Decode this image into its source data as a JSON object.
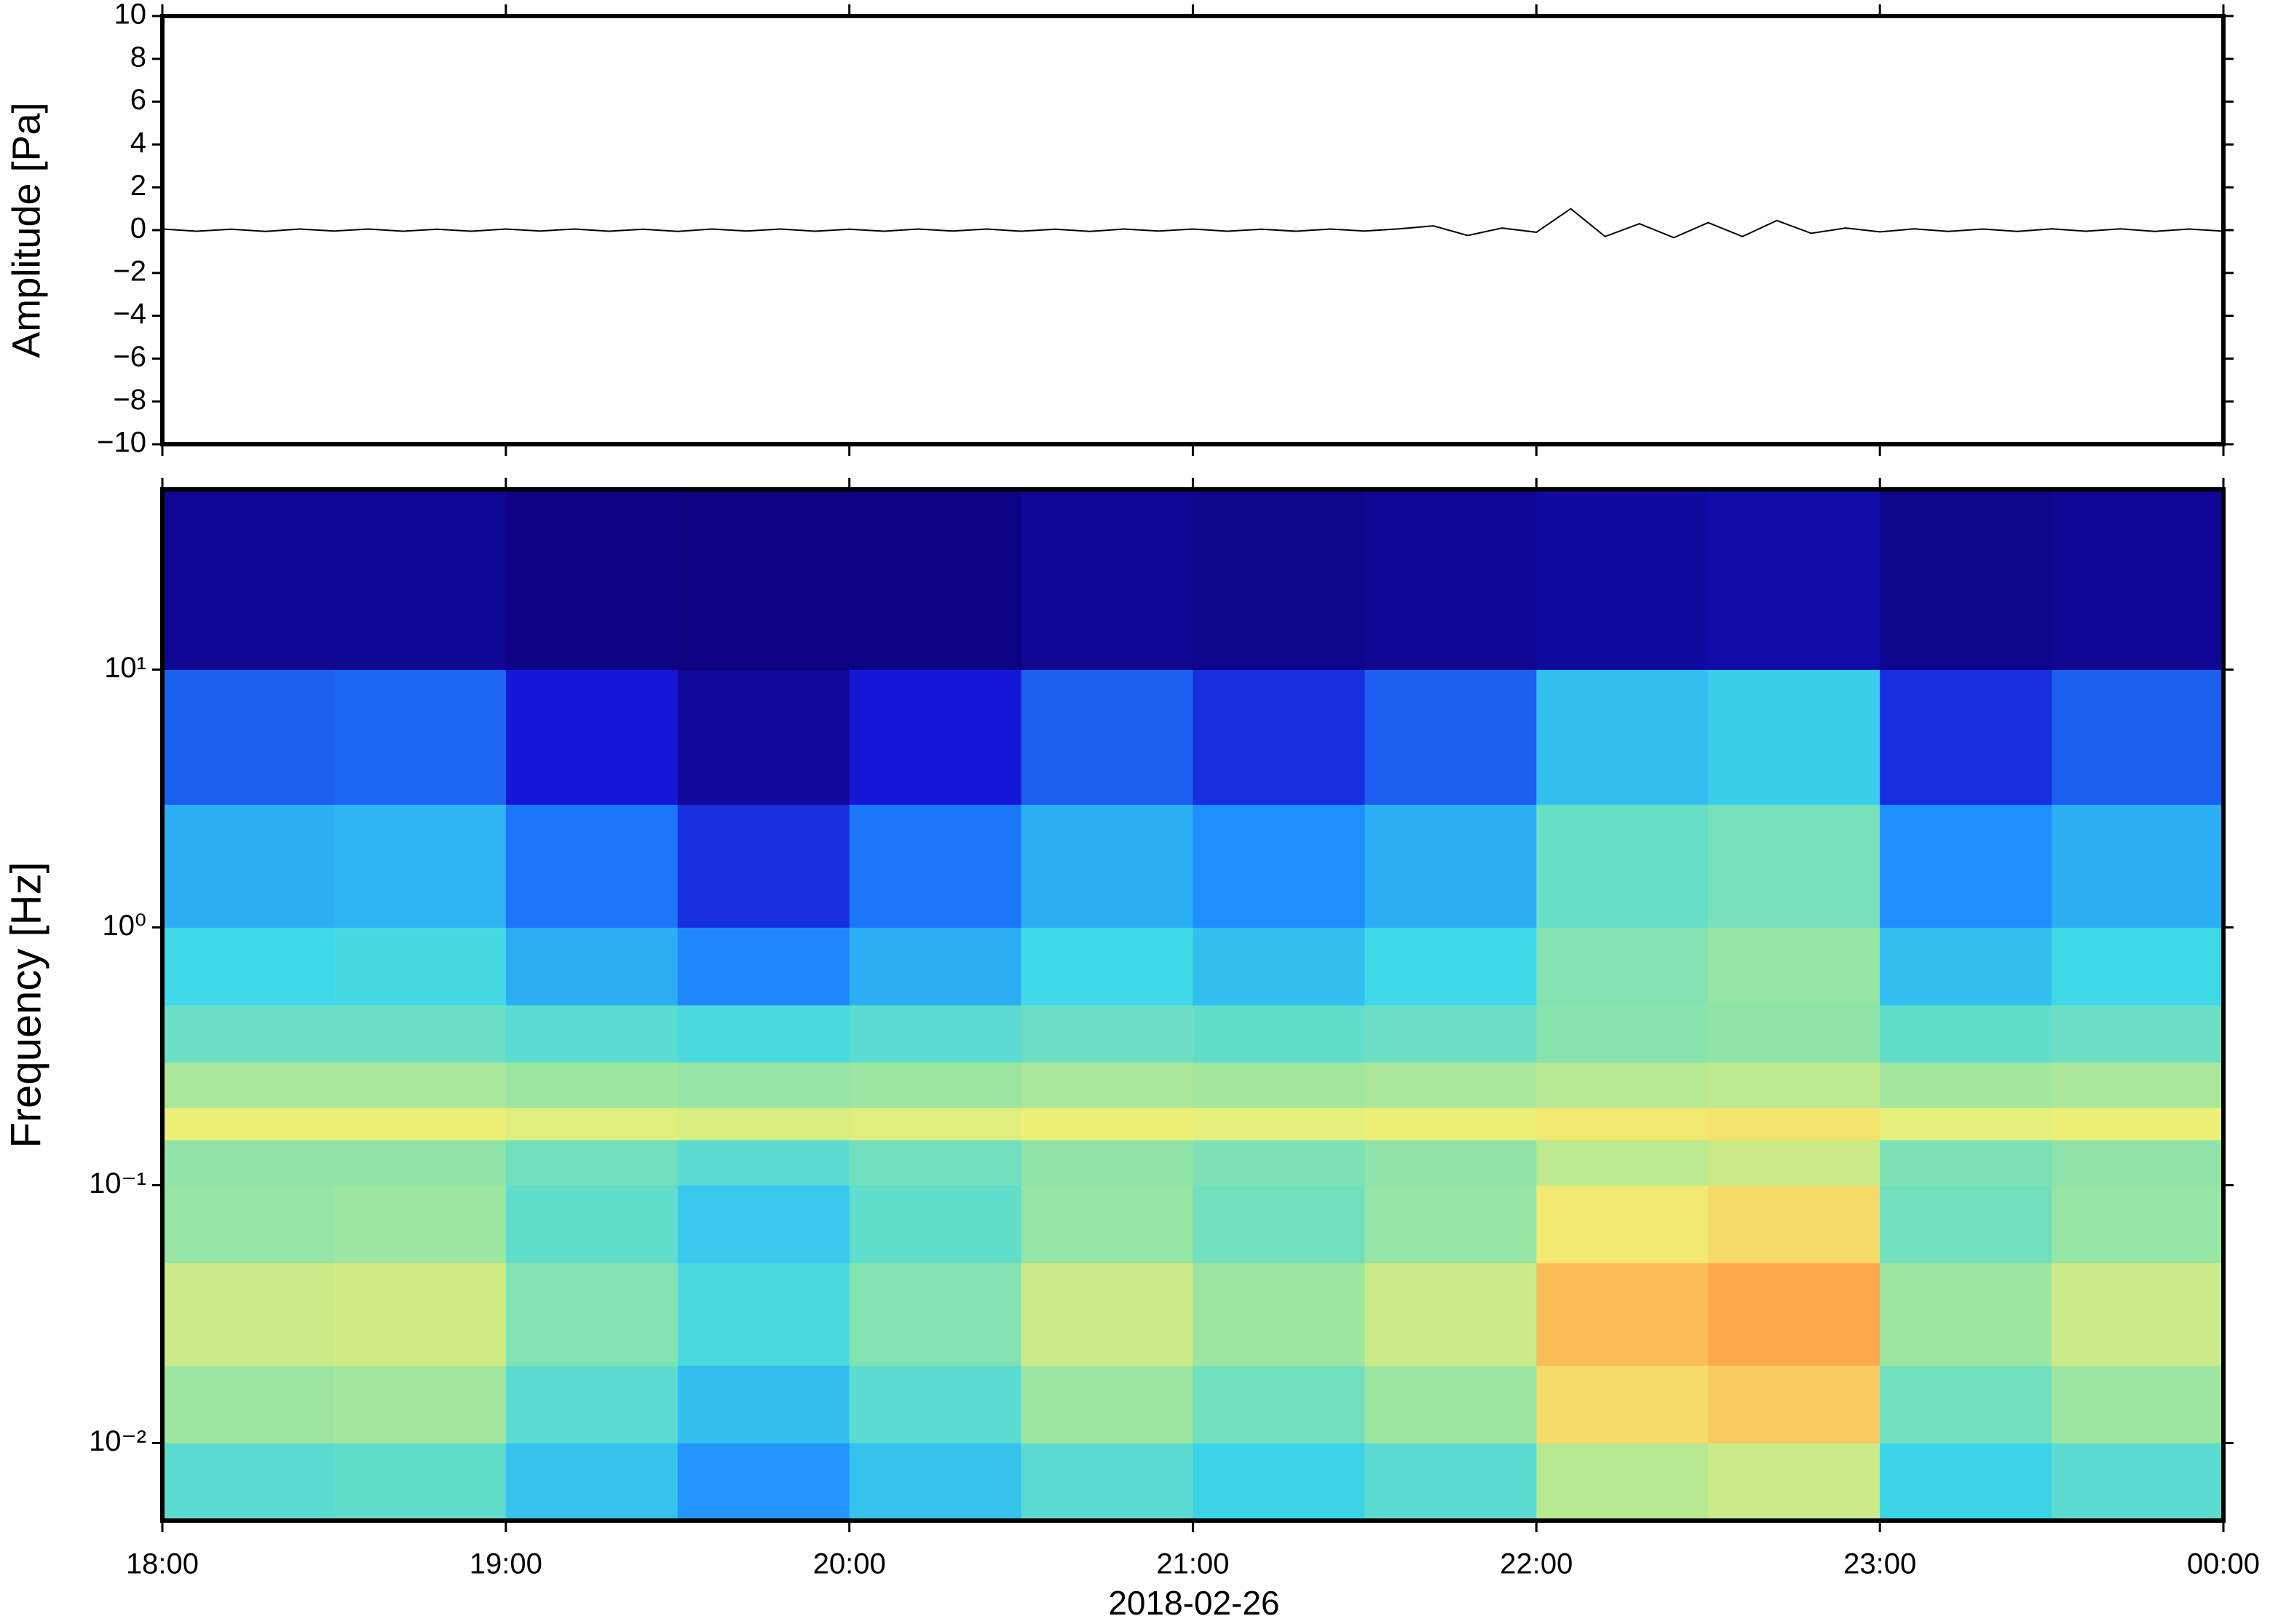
{
  "chart_data": [
    {
      "type": "line",
      "y_label": "Amplitude [Pa]",
      "color": "#000000",
      "x": [
        18.0,
        18.1,
        18.2,
        18.3,
        18.4,
        18.5,
        18.6,
        18.7,
        18.8,
        18.9,
        19.0,
        19.1,
        19.2,
        19.3,
        19.4,
        19.5,
        19.6,
        19.7,
        19.8,
        19.9,
        20.0,
        20.1,
        20.2,
        20.3,
        20.4,
        20.5,
        20.6,
        20.7,
        20.8,
        20.9,
        21.0,
        21.1,
        21.2,
        21.3,
        21.4,
        21.5,
        21.6,
        21.7,
        21.8,
        21.9,
        22.0,
        22.1,
        22.2,
        22.3,
        22.4,
        22.5,
        22.6,
        22.7,
        22.8,
        22.9,
        23.0,
        23.1,
        23.2,
        23.3,
        23.4,
        23.5,
        23.6,
        23.7,
        23.8,
        23.9,
        24.0
      ],
      "values": [
        0.05,
        -0.05,
        0.04,
        -0.06,
        0.05,
        -0.04,
        0.05,
        -0.05,
        0.04,
        -0.05,
        0.05,
        -0.04,
        0.05,
        -0.05,
        0.04,
        -0.06,
        0.05,
        -0.04,
        0.05,
        -0.05,
        0.04,
        -0.05,
        0.05,
        -0.04,
        0.05,
        -0.05,
        0.04,
        -0.06,
        0.05,
        -0.04,
        0.05,
        -0.05,
        0.04,
        -0.05,
        0.05,
        -0.04,
        0.06,
        0.2,
        -0.25,
        0.1,
        -0.1,
        1.0,
        -0.3,
        0.3,
        -0.35,
        0.35,
        -0.3,
        0.45,
        -0.15,
        0.1,
        -0.08,
        0.06,
        -0.06,
        0.05,
        -0.06,
        0.06,
        -0.05,
        0.06,
        -0.06,
        0.05,
        -0.05
      ],
      "xlim": [
        18,
        24
      ],
      "xticks": [
        18,
        19,
        20,
        21,
        22,
        23,
        24
      ],
      "ylim": [
        -10,
        10
      ],
      "yticks": [
        {
          "value": -10,
          "label": "−10"
        },
        {
          "value": -8,
          "label": "−8"
        },
        {
          "value": -6,
          "label": "−6"
        },
        {
          "value": -4,
          "label": "−4"
        },
        {
          "value": -2,
          "label": "−2"
        },
        0,
        2,
        4,
        6,
        8,
        10
      ]
    },
    {
      "type": "heatmap",
      "y_label": "Frequency [Hz]",
      "x_label": "2018-02-26",
      "ylog": true,
      "xlim": [
        18,
        24
      ],
      "xticks": [
        {
          "value": 18,
          "label": "18:00"
        },
        {
          "value": 19,
          "label": "19:00"
        },
        {
          "value": 20,
          "label": "20:00"
        },
        {
          "value": 21,
          "label": "21:00"
        },
        {
          "value": 22,
          "label": "22:00"
        },
        {
          "value": 23,
          "label": "23:00"
        },
        {
          "value": 24,
          "label": "00:00"
        }
      ],
      "ylim": [
        0.005,
        50
      ],
      "yticks": [
        {
          "value": 0.01,
          "label": "10⁻²"
        },
        {
          "value": 0.1,
          "label": "10⁻¹"
        },
        {
          "value": 1,
          "label": "10⁰"
        },
        {
          "value": 10,
          "label": "10¹"
        }
      ],
      "xbins": [
        18,
        18.5,
        19,
        19.5,
        20,
        20.5,
        21,
        21.5,
        22,
        22.5,
        23,
        23.5,
        24
      ],
      "ybins": [
        0.005,
        0.01,
        0.02,
        0.05,
        0.1,
        0.15,
        0.2,
        0.3,
        0.5,
        1,
        3,
        10,
        50
      ],
      "zlim": [
        0,
        1
      ],
      "colors": [
        "#0d0078",
        "#1418d8",
        "#1e8cff",
        "#3ed8e8",
        "#90e4a8",
        "#f0f074",
        "#ffb050",
        "#f0602c"
      ],
      "z": [
        [
          0.48,
          0.49,
          0.39,
          0.3,
          0.39,
          0.48,
          0.42,
          0.48,
          0.63,
          0.66,
          0.42,
          0.48
        ],
        [
          0.59,
          0.6,
          0.48,
          0.38,
          0.48,
          0.59,
          0.52,
          0.59,
          0.76,
          0.8,
          0.52,
          0.59
        ],
        [
          0.66,
          0.67,
          0.55,
          0.45,
          0.55,
          0.66,
          0.59,
          0.66,
          0.83,
          0.87,
          0.59,
          0.66
        ],
        [
          0.58,
          0.59,
          0.49,
          0.4,
          0.49,
          0.58,
          0.52,
          0.58,
          0.73,
          0.76,
          0.52,
          0.58
        ],
        [
          0.57,
          0.57,
          0.52,
          0.48,
          0.52,
          0.57,
          0.54,
          0.57,
          0.64,
          0.66,
          0.54,
          0.57
        ],
        [
          0.71,
          0.71,
          0.69,
          0.68,
          0.69,
          0.71,
          0.7,
          0.71,
          0.73,
          0.74,
          0.7,
          0.71
        ],
        [
          0.61,
          0.61,
          0.59,
          0.58,
          0.59,
          0.61,
          0.6,
          0.61,
          0.63,
          0.64,
          0.6,
          0.61
        ],
        [
          0.51,
          0.51,
          0.48,
          0.45,
          0.48,
          0.51,
          0.49,
          0.51,
          0.56,
          0.57,
          0.49,
          0.51
        ],
        [
          0.43,
          0.44,
          0.35,
          0.28,
          0.35,
          0.43,
          0.38,
          0.43,
          0.55,
          0.58,
          0.38,
          0.43
        ],
        [
          0.35,
          0.36,
          0.26,
          0.17,
          0.26,
          0.35,
          0.29,
          0.35,
          0.5,
          0.53,
          0.29,
          0.35
        ],
        [
          0.23,
          0.24,
          0.14,
          0.05,
          0.14,
          0.23,
          0.17,
          0.23,
          0.38,
          0.41,
          0.17,
          0.23
        ],
        [
          0.04,
          0.04,
          0.02,
          0.01,
          0.02,
          0.04,
          0.03,
          0.04,
          0.06,
          0.07,
          0.03,
          0.04
        ]
      ]
    }
  ]
}
